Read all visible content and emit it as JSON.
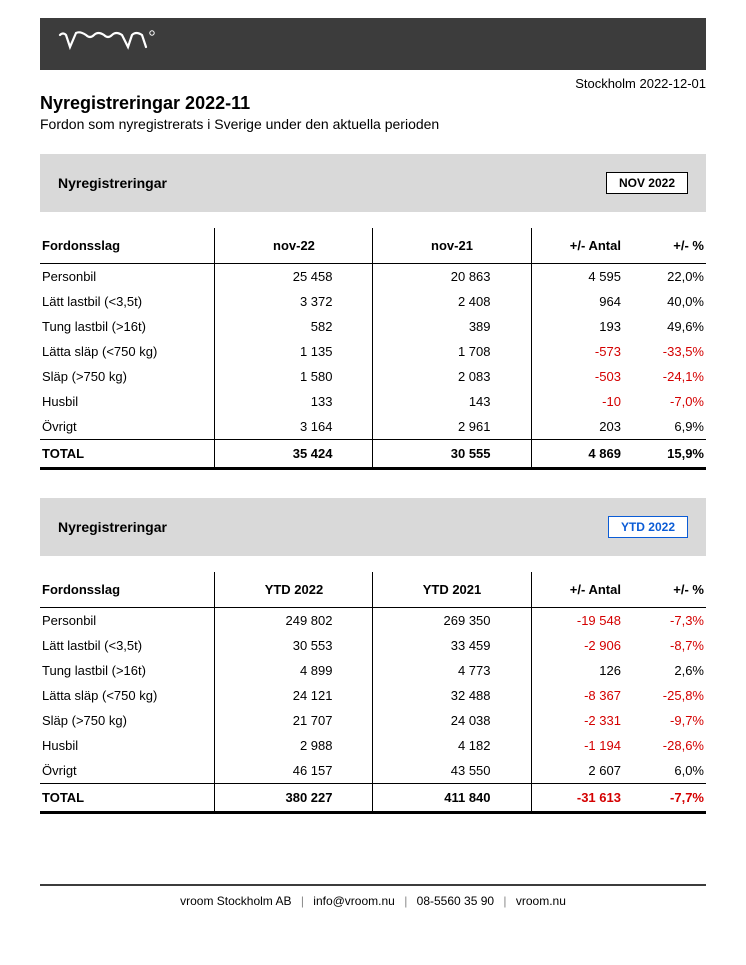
{
  "meta": {
    "location_date": "Stockholm 2022-12-01"
  },
  "header": {
    "title": "Nyregistreringar 2022-11",
    "subtitle": "Fordon som nyregistrerats i Sverige under den aktuella perioden"
  },
  "tables": [
    {
      "section_label": "Nyregistreringar",
      "badge": "NOV 2022",
      "badge_color": "black",
      "columns": {
        "type": "Fordonsslag",
        "cur": "nov-22",
        "prev": "nov-21",
        "diff": "+/- Antal",
        "pct": "+/- %"
      },
      "rows": [
        {
          "type": "Personbil",
          "cur": "25 458",
          "prev": "20 863",
          "diff": "4 595",
          "pct": "22,0%",
          "neg": false
        },
        {
          "type": "Lätt lastbil (<3,5t)",
          "cur": "3 372",
          "prev": "2 408",
          "diff": "964",
          "pct": "40,0%",
          "neg": false
        },
        {
          "type": "Tung lastbil (>16t)",
          "cur": "582",
          "prev": "389",
          "diff": "193",
          "pct": "49,6%",
          "neg": false
        },
        {
          "type": "Lätta släp (<750 kg)",
          "cur": "1 135",
          "prev": "1 708",
          "diff": "-573",
          "pct": "-33,5%",
          "neg": true
        },
        {
          "type": "Släp (>750 kg)",
          "cur": "1 580",
          "prev": "2 083",
          "diff": "-503",
          "pct": "-24,1%",
          "neg": true
        },
        {
          "type": "Husbil",
          "cur": "133",
          "prev": "143",
          "diff": "-10",
          "pct": "-7,0%",
          "neg": true
        },
        {
          "type": "Övrigt",
          "cur": "3 164",
          "prev": "2 961",
          "diff": "203",
          "pct": "6,9%",
          "neg": false
        }
      ],
      "total": {
        "label": "TOTAL",
        "cur": "35 424",
        "prev": "30 555",
        "diff": "4 869",
        "pct": "15,9%",
        "neg": false
      }
    },
    {
      "section_label": "Nyregistreringar",
      "badge": "YTD 2022",
      "badge_color": "blue",
      "columns": {
        "type": "Fordonsslag",
        "cur": "YTD 2022",
        "prev": "YTD 2021",
        "diff": "+/- Antal",
        "pct": "+/- %"
      },
      "rows": [
        {
          "type": "Personbil",
          "cur": "249 802",
          "prev": "269 350",
          "diff": "-19 548",
          "pct": "-7,3%",
          "neg": true
        },
        {
          "type": "Lätt lastbil (<3,5t)",
          "cur": "30 553",
          "prev": "33 459",
          "diff": "-2 906",
          "pct": "-8,7%",
          "neg": true
        },
        {
          "type": "Tung lastbil (>16t)",
          "cur": "4 899",
          "prev": "4 773",
          "diff": "126",
          "pct": "2,6%",
          "neg": false
        },
        {
          "type": "Lätta släp (<750 kg)",
          "cur": "24 121",
          "prev": "32 488",
          "diff": "-8 367",
          "pct": "-25,8%",
          "neg": true
        },
        {
          "type": "Släp (>750 kg)",
          "cur": "21 707",
          "prev": "24 038",
          "diff": "-2 331",
          "pct": "-9,7%",
          "neg": true
        },
        {
          "type": "Husbil",
          "cur": "2 988",
          "prev": "4 182",
          "diff": "-1 194",
          "pct": "-28,6%",
          "neg": true
        },
        {
          "type": "Övrigt",
          "cur": "46 157",
          "prev": "43 550",
          "diff": "2 607",
          "pct": "6,0%",
          "neg": false
        }
      ],
      "total": {
        "label": "TOTAL",
        "cur": "380 227",
        "prev": "411 840",
        "diff": "-31 613",
        "pct": "-7,7%",
        "neg": true
      }
    }
  ],
  "footer": {
    "company": "vroom Stockholm AB",
    "email": "info@vroom.nu",
    "phone": "08-5560 35 90",
    "web": "vroom.nu"
  },
  "colors": {
    "banner_bg": "#3c3c3c",
    "section_bg": "#d9d9d9",
    "negative": "#d40000",
    "badge_blue": "#0b5cd6"
  }
}
